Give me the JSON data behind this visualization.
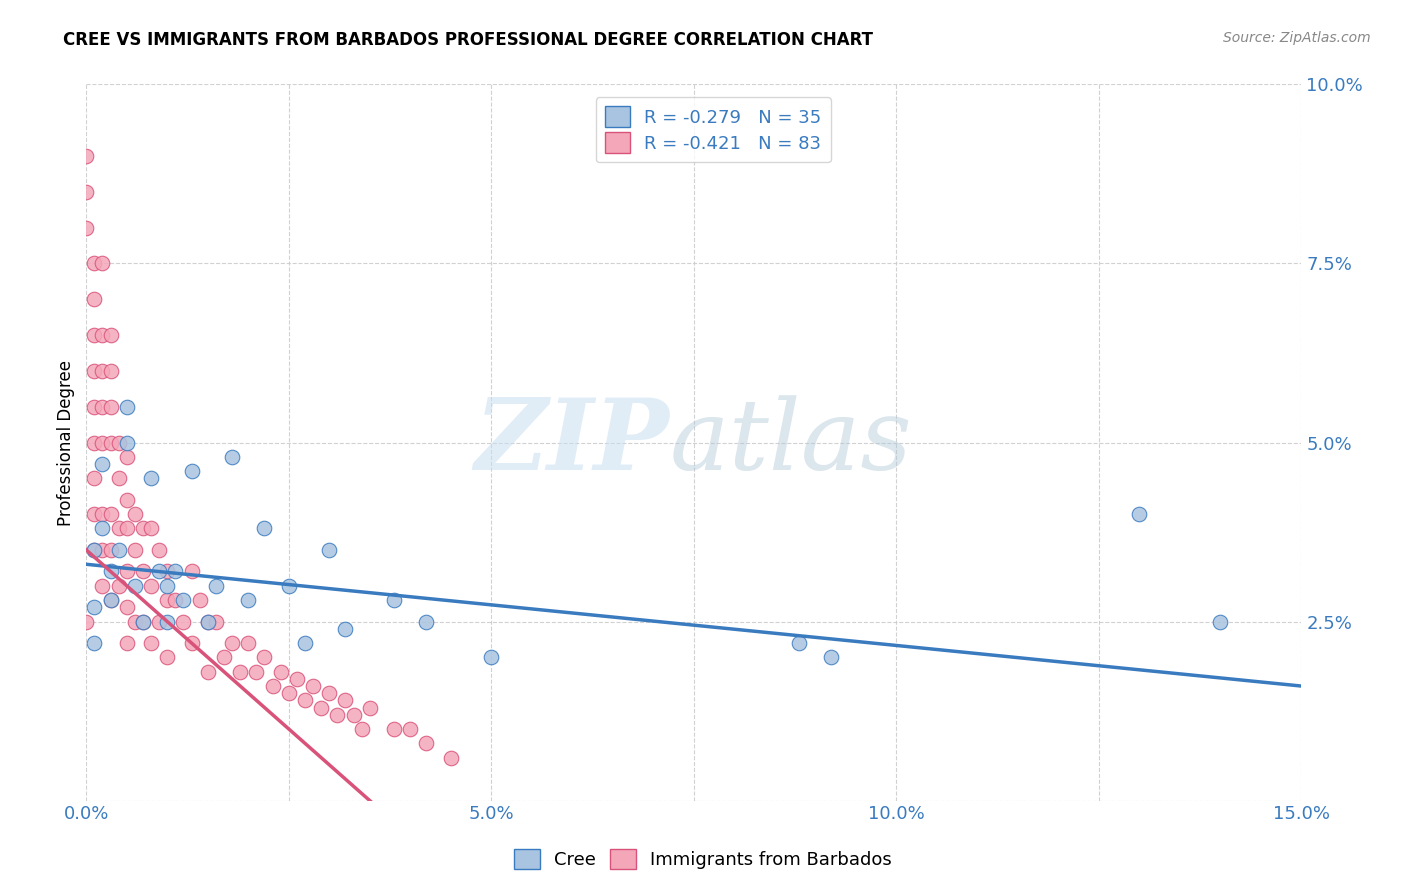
{
  "title": "CREE VS IMMIGRANTS FROM BARBADOS PROFESSIONAL DEGREE CORRELATION CHART",
  "source": "Source: ZipAtlas.com",
  "ylabel": "Professional Degree",
  "xlim": [
    0.0,
    0.15
  ],
  "ylim": [
    0.0,
    0.1
  ],
  "xticks": [
    0.0,
    0.025,
    0.05,
    0.075,
    0.1,
    0.125,
    0.15
  ],
  "xticklabels": [
    "0.0%",
    "",
    "5.0%",
    "",
    "10.0%",
    "",
    "15.0%"
  ],
  "yticks": [
    0.0,
    0.025,
    0.05,
    0.075,
    0.1
  ],
  "yticklabels": [
    "",
    "2.5%",
    "5.0%",
    "7.5%",
    "10.0%"
  ],
  "cree_color": "#a8c4e0",
  "barbados_color": "#f4a7b9",
  "cree_line_color": "#3a7bbf",
  "barbados_line_color": "#d9527a",
  "cree_R": -0.279,
  "cree_N": 35,
  "barbados_R": -0.421,
  "barbados_N": 83,
  "watermark_zip": "ZIP",
  "watermark_atlas": "atlas",
  "cree_x": [
    0.001,
    0.001,
    0.001,
    0.002,
    0.002,
    0.003,
    0.003,
    0.004,
    0.005,
    0.005,
    0.006,
    0.007,
    0.008,
    0.009,
    0.01,
    0.01,
    0.011,
    0.012,
    0.013,
    0.015,
    0.016,
    0.018,
    0.02,
    0.022,
    0.025,
    0.027,
    0.03,
    0.032,
    0.038,
    0.042,
    0.05,
    0.088,
    0.092,
    0.13,
    0.14
  ],
  "cree_y": [
    0.035,
    0.027,
    0.022,
    0.047,
    0.038,
    0.032,
    0.028,
    0.035,
    0.055,
    0.05,
    0.03,
    0.025,
    0.045,
    0.032,
    0.025,
    0.03,
    0.032,
    0.028,
    0.046,
    0.025,
    0.03,
    0.048,
    0.028,
    0.038,
    0.03,
    0.022,
    0.035,
    0.024,
    0.028,
    0.025,
    0.02,
    0.022,
    0.02,
    0.04,
    0.025
  ],
  "barbados_x": [
    0.0,
    0.0,
    0.0,
    0.0,
    0.001,
    0.001,
    0.001,
    0.001,
    0.001,
    0.001,
    0.001,
    0.001,
    0.001,
    0.002,
    0.002,
    0.002,
    0.002,
    0.002,
    0.002,
    0.002,
    0.002,
    0.003,
    0.003,
    0.003,
    0.003,
    0.003,
    0.003,
    0.003,
    0.004,
    0.004,
    0.004,
    0.004,
    0.005,
    0.005,
    0.005,
    0.005,
    0.005,
    0.005,
    0.006,
    0.006,
    0.006,
    0.007,
    0.007,
    0.007,
    0.008,
    0.008,
    0.008,
    0.009,
    0.009,
    0.01,
    0.01,
    0.01,
    0.011,
    0.012,
    0.013,
    0.013,
    0.014,
    0.015,
    0.015,
    0.016,
    0.017,
    0.018,
    0.019,
    0.02,
    0.021,
    0.022,
    0.023,
    0.024,
    0.025,
    0.026,
    0.027,
    0.028,
    0.029,
    0.03,
    0.031,
    0.032,
    0.033,
    0.034,
    0.035,
    0.038,
    0.04,
    0.042,
    0.045
  ],
  "barbados_y": [
    0.09,
    0.085,
    0.08,
    0.025,
    0.075,
    0.07,
    0.065,
    0.06,
    0.055,
    0.05,
    0.045,
    0.04,
    0.035,
    0.075,
    0.065,
    0.06,
    0.055,
    0.05,
    0.04,
    0.035,
    0.03,
    0.065,
    0.06,
    0.055,
    0.05,
    0.04,
    0.035,
    0.028,
    0.05,
    0.045,
    0.038,
    0.03,
    0.048,
    0.042,
    0.038,
    0.032,
    0.027,
    0.022,
    0.04,
    0.035,
    0.025,
    0.038,
    0.032,
    0.025,
    0.038,
    0.03,
    0.022,
    0.035,
    0.025,
    0.032,
    0.028,
    0.02,
    0.028,
    0.025,
    0.032,
    0.022,
    0.028,
    0.025,
    0.018,
    0.025,
    0.02,
    0.022,
    0.018,
    0.022,
    0.018,
    0.02,
    0.016,
    0.018,
    0.015,
    0.017,
    0.014,
    0.016,
    0.013,
    0.015,
    0.012,
    0.014,
    0.012,
    0.01,
    0.013,
    0.01,
    0.01,
    0.008,
    0.006
  ],
  "cree_regr": [
    0.033,
    0.016
  ],
  "barb_regr": [
    0.035,
    -0.005
  ]
}
